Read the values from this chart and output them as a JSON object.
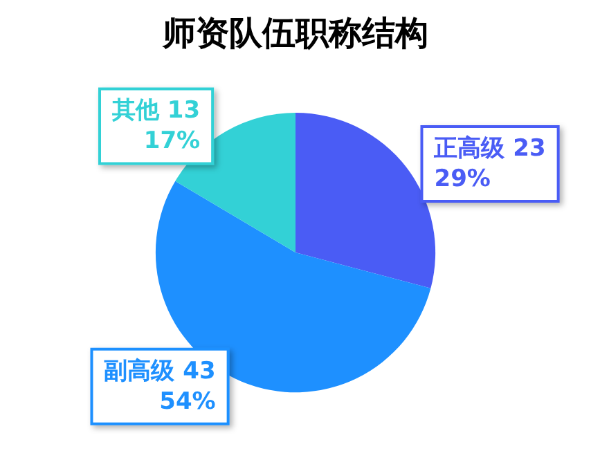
{
  "chart_data": {
    "type": "pie",
    "title": "师资队伍职称结构",
    "categories": [
      "正高级",
      "副高级",
      "其他"
    ],
    "values": [
      23,
      43,
      13
    ],
    "colors": [
      "#4a5cf5",
      "#1e90ff",
      "#33d1d6"
    ],
    "value_labels": [
      "23\n29%",
      "43\n54%",
      "13\n17%"
    ],
    "legend": false
  }
}
